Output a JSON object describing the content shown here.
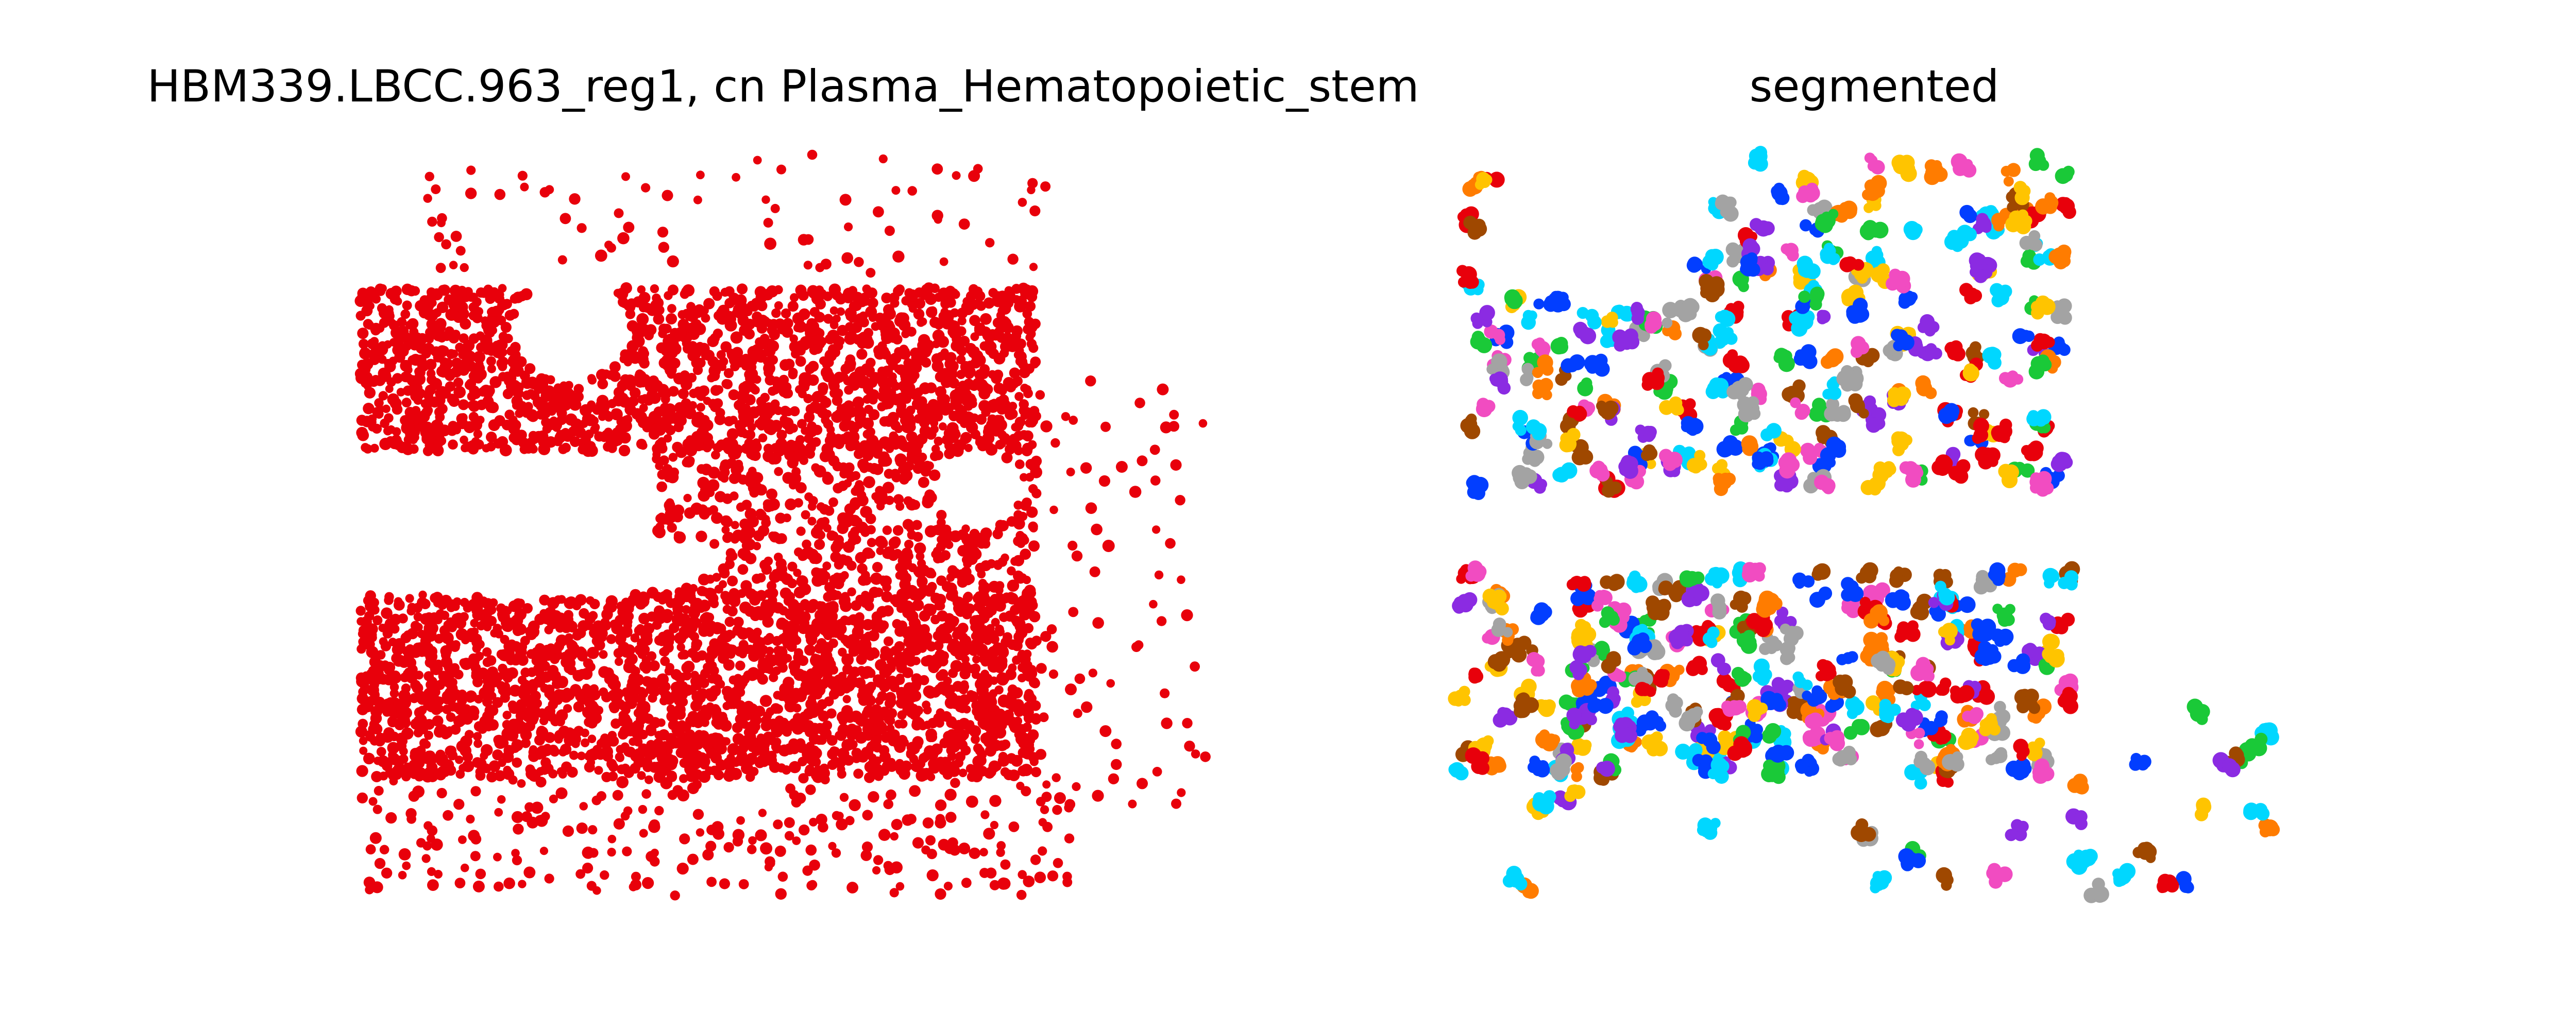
{
  "chart_data": [
    {
      "type": "scatter",
      "title": "HBM339.LBCC.963_reg1, cn Plasma_Hematopoietic_stem",
      "xlabel": "",
      "ylabel": "",
      "axes": "off",
      "grid": false,
      "legend": "none",
      "point_color": "#e8000b",
      "point_count": 5000,
      "regions": [
        {
          "name": "dense upper band",
          "x": [
            0.0,
            0.8
          ],
          "y": [
            0.6,
            0.82
          ],
          "weight": 0.34
        },
        {
          "name": "dense lower band",
          "x": [
            0.0,
            0.8
          ],
          "y": [
            0.16,
            0.41
          ],
          "weight": 0.42
        },
        {
          "name": "bridge",
          "x": [
            0.35,
            0.8
          ],
          "y": [
            0.4,
            0.61
          ],
          "weight": 0.12
        },
        {
          "name": "sparse top fringe",
          "x": [
            0.07,
            0.82
          ],
          "y": [
            0.84,
            1.0
          ],
          "weight": 0.012
        },
        {
          "name": "sparse bottom fringe",
          "x": [
            0.0,
            0.84
          ],
          "y": [
            0.0,
            0.16
          ],
          "weight": 0.045
        },
        {
          "name": "sparse right fringe",
          "x": [
            0.8,
            1.0
          ],
          "y": [
            0.1,
            0.7
          ],
          "weight": 0.012
        }
      ],
      "gaps": [
        {
          "name": "upper clear patch",
          "cx": 0.25,
          "cy": 0.76,
          "rx": 0.07,
          "ry": 0.065
        },
        {
          "name": "mid-left clear channel",
          "cx": 0.21,
          "cy": 0.45,
          "rx": 0.22,
          "ry": 0.05
        },
        {
          "name": "right notch",
          "cx": 0.73,
          "cy": 0.55,
          "rx": 0.05,
          "ry": 0.055
        }
      ]
    },
    {
      "type": "scatter",
      "title": "segmented",
      "xlabel": "",
      "ylabel": "",
      "axes": "off",
      "grid": false,
      "legend": "none",
      "palette": [
        "#023eff",
        "#ff7c00",
        "#1ac938",
        "#e8000b",
        "#8b2be2",
        "#9f4800",
        "#f14cc1",
        "#a3a3a3",
        "#ffc400",
        "#00d7ff"
      ],
      "cluster_count": 560,
      "regions": [
        {
          "name": "upper block",
          "x": [
            0.0,
            0.72
          ],
          "y": [
            0.55,
            1.0
          ],
          "weight": 0.52
        },
        {
          "name": "lower block",
          "x": [
            0.0,
            0.72
          ],
          "y": [
            0.16,
            0.44
          ],
          "weight": 0.42
        },
        {
          "name": "scattered outliers",
          "x": [
            0.05,
            1.0
          ],
          "y": [
            0.0,
            0.25
          ],
          "weight": 0.06
        }
      ],
      "gaps": [
        {
          "name": "upper clear band",
          "cx": 0.16,
          "cy": 0.9,
          "rx": 0.14,
          "ry": 0.1
        },
        {
          "name": "middle clear strip",
          "cx": 0.3,
          "cy": 0.5,
          "rx": 0.3,
          "ry": 0.055
        }
      ]
    }
  ]
}
